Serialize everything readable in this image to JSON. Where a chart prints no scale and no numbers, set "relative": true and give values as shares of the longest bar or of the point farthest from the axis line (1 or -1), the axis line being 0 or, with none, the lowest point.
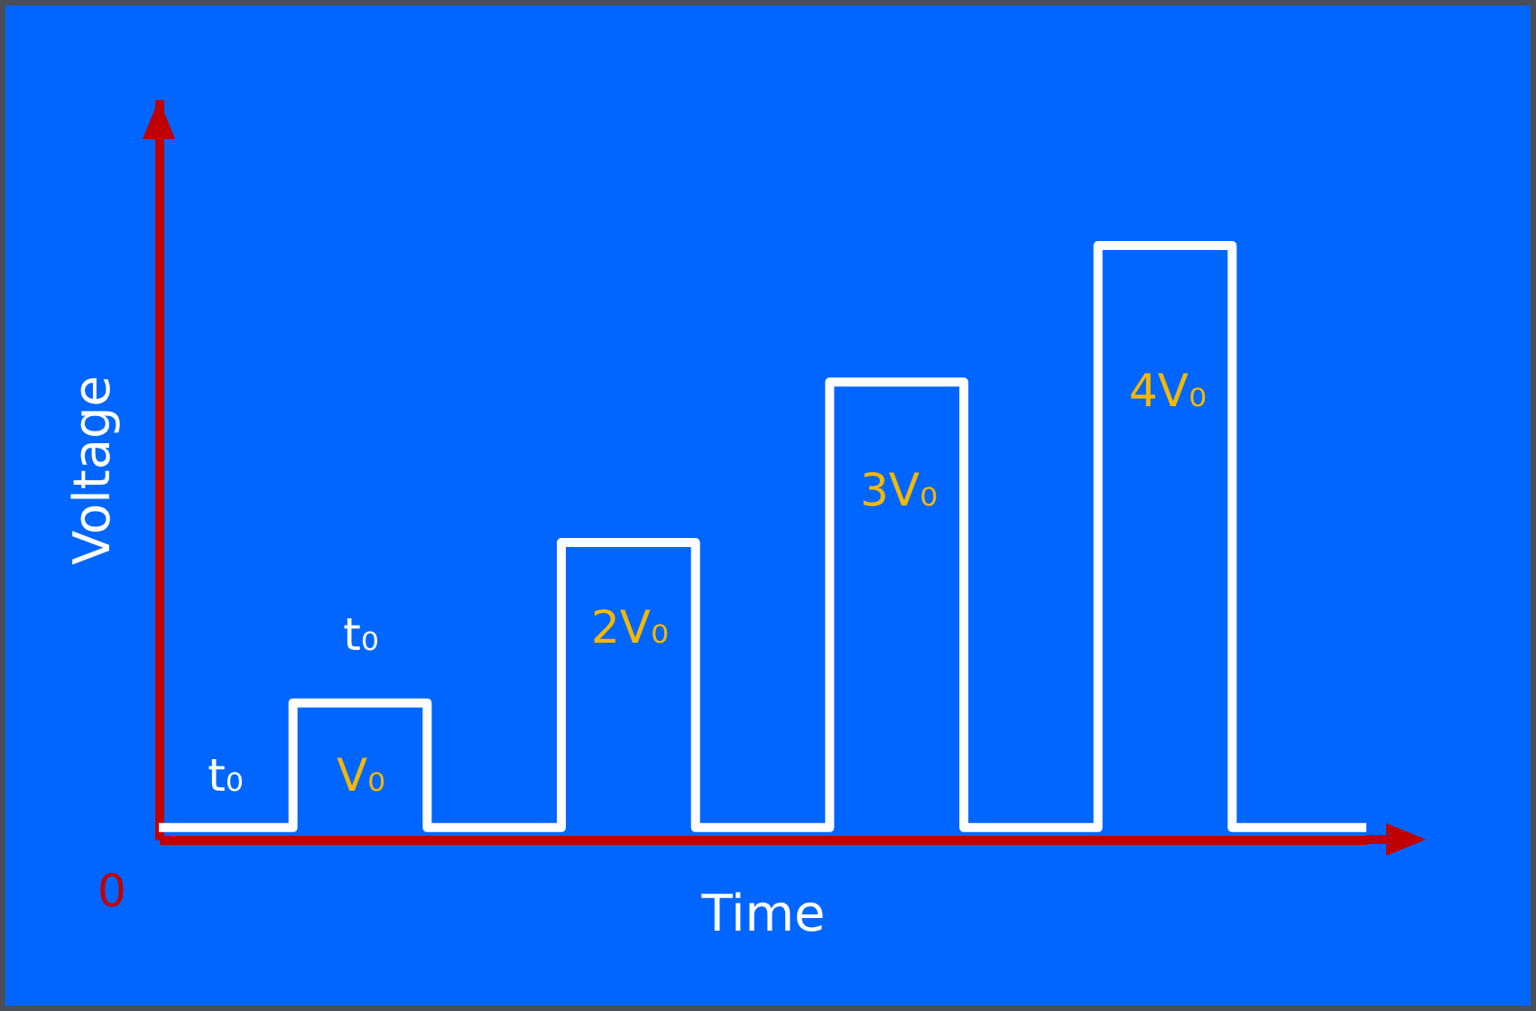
{
  "chart_data": {
    "type": "step",
    "relative": true,
    "xlabel": "Time",
    "ylabel": "Voltage",
    "categories": [
      null,
      null,
      null,
      null,
      null,
      null,
      null,
      null,
      null,
      null
    ],
    "series": [
      {
        "color": "#ffffff",
        "values": [
          0.02,
          0.23,
          0.02,
          0.5,
          0.02,
          0.77,
          0.02,
          1,
          0.02,
          0.02
        ]
      }
    ],
    "annotations": [
      "t₀",
      "t₀",
      "V₀",
      "2V₀",
      "3V₀",
      "4V₀",
      "0"
    ],
    "grid": false,
    "legend": false
  }
}
